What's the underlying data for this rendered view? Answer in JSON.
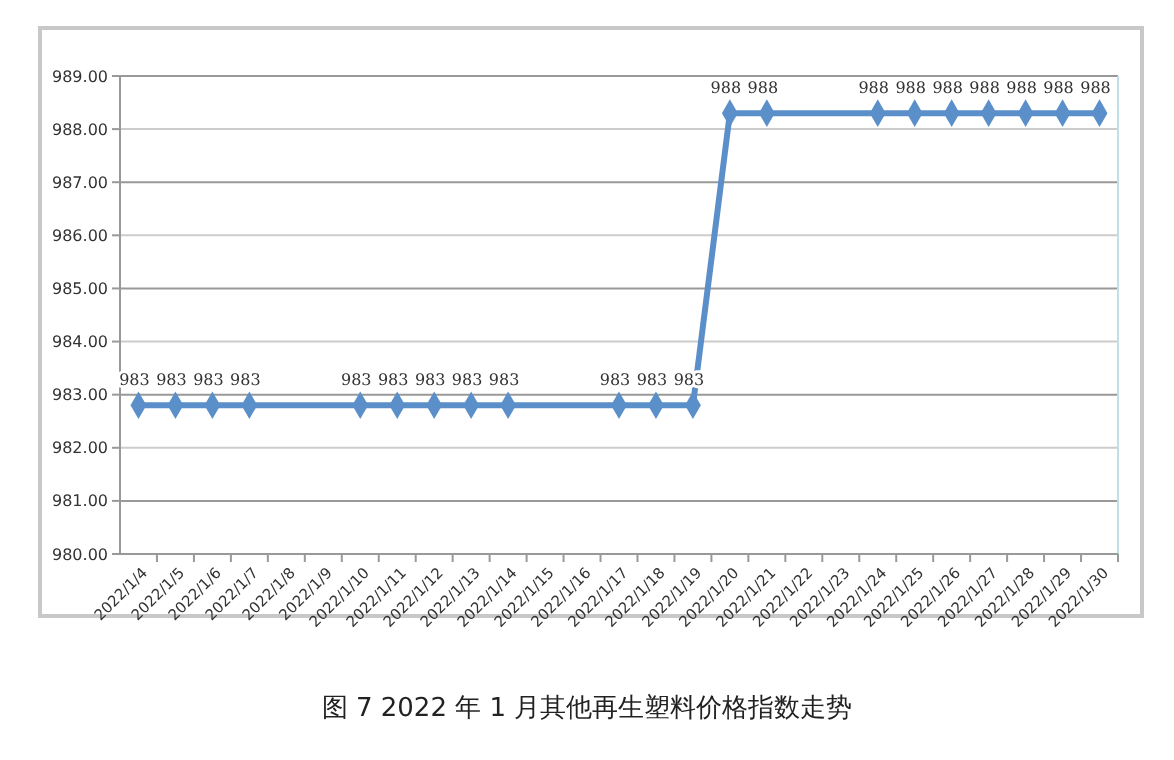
{
  "chart_data": {
    "type": "line",
    "title": "图 7  2022 年 1 月其他再生塑料价格指数走势",
    "categories": [
      "2022/1/4",
      "2022/1/5",
      "2022/1/6",
      "2022/1/7",
      "2022/1/8",
      "2022/1/9",
      "2022/1/10",
      "2022/1/11",
      "2022/1/12",
      "2022/1/13",
      "2022/1/14",
      "2022/1/15",
      "2022/1/16",
      "2022/1/17",
      "2022/1/18",
      "2022/1/19",
      "2022/1/20",
      "2022/1/21",
      "2022/1/22",
      "2022/1/23",
      "2022/1/24",
      "2022/1/25",
      "2022/1/26",
      "2022/1/27",
      "2022/1/28",
      "2022/1/29",
      "2022/1/30"
    ],
    "series": [
      {
        "color": "#5b8fc9",
        "values": [
          982.8,
          982.8,
          982.8,
          982.8,
          null,
          null,
          982.8,
          982.8,
          982.8,
          982.8,
          982.8,
          null,
          null,
          982.8,
          982.8,
          982.8,
          988.3,
          988.3,
          null,
          null,
          988.3,
          988.3,
          988.3,
          988.3,
          988.3,
          988.3,
          988.3
        ],
        "value_labels": [
          "983",
          "983",
          "983",
          "983",
          null,
          null,
          "983",
          "983",
          "983",
          "983",
          "983",
          null,
          null,
          "983",
          "983",
          "983",
          "988",
          "988",
          null,
          null,
          "988",
          "988",
          "988",
          "988",
          "988",
          "988",
          "988"
        ]
      }
    ],
    "ylim": [
      980,
      989
    ],
    "yticks": [
      {
        "value": 980,
        "label": "980.00"
      },
      {
        "value": 981,
        "label": "981.00"
      },
      {
        "value": 982,
        "label": "982.00"
      },
      {
        "value": 983,
        "label": "983.00"
      },
      {
        "value": 984,
        "label": "984.00"
      },
      {
        "value": 985,
        "label": "985.00"
      },
      {
        "value": 986,
        "label": "986.00"
      },
      {
        "value": 987,
        "label": "987.00"
      },
      {
        "value": 988,
        "label": "988.00"
      },
      {
        "value": 989,
        "label": "989.00"
      }
    ],
    "grid": "y",
    "marker": "diamond",
    "line_style": "solid"
  }
}
